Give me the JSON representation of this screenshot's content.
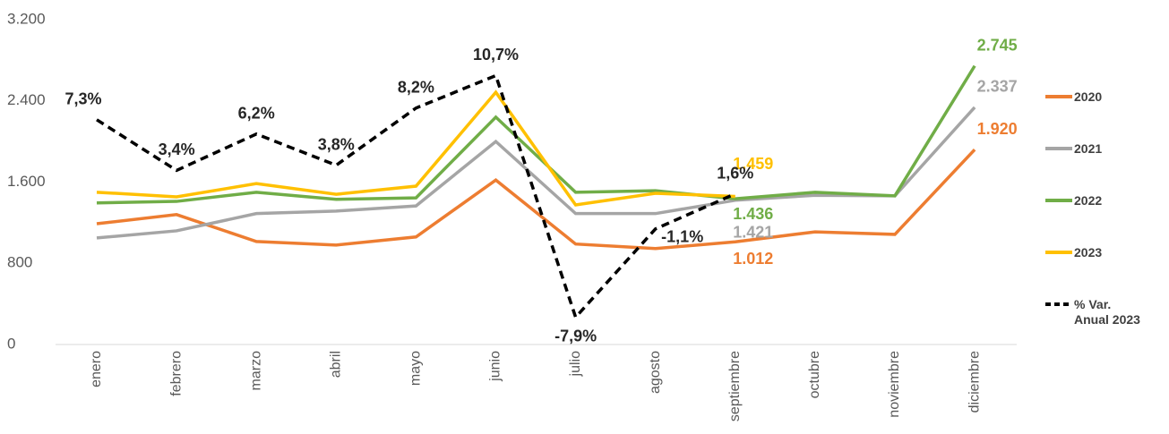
{
  "chart_data": {
    "type": "line",
    "categories": [
      "enero",
      "febrero",
      "marzo",
      "abril",
      "mayo",
      "junio",
      "julio",
      "agosto",
      "septiembre",
      "octubre",
      "noviembre",
      "diciembre"
    ],
    "ylim": [
      0,
      3200
    ],
    "yticks": [
      0,
      800,
      {
        "value": 1600,
        "label": "1.600"
      },
      {
        "value": 2400,
        "label": "2.400"
      },
      {
        "value": 3200,
        "label": "3.200"
      }
    ],
    "y2lim": [
      -10,
      15
    ],
    "series": [
      {
        "name": "2020",
        "color": "#ed7d31",
        "values": [
          1190,
          1280,
          1015,
          980,
          1060,
          1620,
          990,
          945,
          1012,
          1110,
          1085,
          1920
        ],
        "value_labels": [
          null,
          null,
          null,
          null,
          null,
          null,
          null,
          null,
          "1.012",
          null,
          null,
          "1.920"
        ]
      },
      {
        "name": "2021",
        "color": "#a5a5a5",
        "values": [
          1050,
          1120,
          1290,
          1315,
          1365,
          2000,
          1290,
          1290,
          1421,
          1470,
          1465,
          2337
        ],
        "value_labels": [
          null,
          null,
          null,
          null,
          null,
          null,
          null,
          null,
          "1.421",
          null,
          null,
          "2.337"
        ]
      },
      {
        "name": "2022",
        "color": "#70ad47",
        "values": [
          1395,
          1410,
          1500,
          1430,
          1445,
          2240,
          1500,
          1515,
          1436,
          1500,
          1465,
          2745
        ],
        "value_labels": [
          null,
          null,
          null,
          null,
          null,
          null,
          null,
          null,
          "1.436",
          null,
          null,
          "2.745"
        ]
      },
      {
        "name": "2023",
        "color": "#ffc000",
        "values": [
          1500,
          1455,
          1585,
          1480,
          1560,
          2485,
          1375,
          1490,
          1459,
          null,
          null,
          null
        ],
        "value_labels": [
          null,
          null,
          null,
          null,
          null,
          null,
          null,
          null,
          "1.459",
          null,
          null,
          null
        ]
      },
      {
        "name": "% Var. Anual 2023",
        "color": "#000000",
        "dashed": true,
        "axis": "y2",
        "values": [
          7.3,
          3.4,
          6.2,
          3.8,
          8.2,
          10.7,
          -7.9,
          -1.1,
          1.6,
          null,
          null,
          null
        ],
        "value_labels": [
          "7,3%",
          "3,4%",
          "6,2%",
          "3,8%",
          "8,2%",
          "10,7%",
          "-7,9%",
          "-1,1%",
          "1,6%",
          null,
          null,
          null
        ]
      }
    ]
  }
}
